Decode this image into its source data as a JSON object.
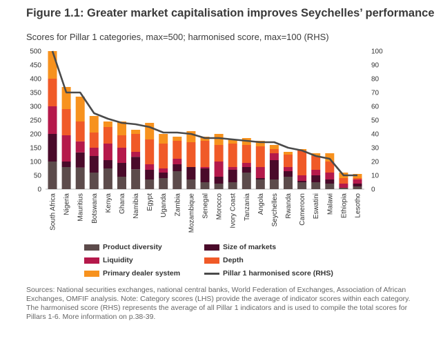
{
  "figure": {
    "title": "Figure 1.1: Greater market capitalisation improves Seychelles’ performance",
    "subtitle": "Scores for Pillar 1 categories, max=500; harmonised score, max=100 (RHS)",
    "source": "Sources: National securities exchanges, national central banks, World Federation of Exchanges, Association of African Exchanges, OMFIF analysis. Note: Category scores (LHS) provide the average of indicator scores within each category. The harmonised score (RHS) represents the average of all Pillar 1 indicators and is used to compile the total scores for Pillars 1-6. More information on p.38-39."
  },
  "chart_data": {
    "type": "bar",
    "stacked": true,
    "categories": [
      "South Africa",
      "Nigeria",
      "Mauritius",
      "Botswana",
      "Kenya",
      "Ghana",
      "Namibia",
      "Egypt",
      "Uganda",
      "Zambia",
      "Mozambique",
      "Senegal",
      "Morocco",
      "Ivory Coast",
      "Tanzania",
      "Angola",
      "Seychelles",
      "Rwanda",
      "Cameroon",
      "Eswatini",
      "Malawi",
      "Ethiopia",
      "Lesotho"
    ],
    "series": [
      {
        "name": "Product diversity",
        "color": "#5c4b4b",
        "axis": "left",
        "values": [
          100,
          80,
          78,
          60,
          75,
          45,
          72,
          35,
          40,
          65,
          35,
          25,
          20,
          25,
          60,
          35,
          35,
          45,
          25,
          25,
          20,
          5,
          10
        ]
      },
      {
        "name": "Size of markets",
        "color": "#4a0a2a",
        "axis": "left",
        "values": [
          100,
          20,
          55,
          60,
          30,
          50,
          45,
          35,
          20,
          25,
          45,
          50,
          25,
          45,
          20,
          5,
          70,
          20,
          5,
          25,
          15,
          0,
          10
        ]
      },
      {
        "name": "Liquidity",
        "color": "#b5194b",
        "axis": "left",
        "values": [
          100,
          95,
          40,
          30,
          60,
          55,
          18,
          20,
          15,
          20,
          0,
          5,
          55,
          10,
          15,
          40,
          25,
          15,
          20,
          20,
          25,
          15,
          15
        ]
      },
      {
        "name": "Depth",
        "color": "#f05a28",
        "axis": "left",
        "values": [
          100,
          95,
          72,
          55,
          60,
          45,
          65,
          90,
          90,
          65,
          90,
          95,
          60,
          85,
          65,
          75,
          15,
          45,
          90,
          50,
          40,
          20,
          5
        ]
      },
      {
        "name": "Primary dealer system",
        "color": "#f7921e",
        "axis": "left",
        "values": [
          100,
          80,
          90,
          60,
          20,
          50,
          15,
          60,
          35,
          15,
          40,
          15,
          40,
          15,
          25,
          20,
          15,
          10,
          5,
          10,
          30,
          20,
          15
        ]
      },
      {
        "name": "Pillar 1 harmonised score (RHS)",
        "color": "#4a4a4a",
        "axis": "right",
        "type": "line",
        "values": [
          100,
          70,
          70,
          55,
          51,
          48,
          47,
          45,
          41,
          41,
          40,
          37,
          37,
          36,
          35,
          34,
          34,
          30,
          28,
          24,
          22,
          10,
          10
        ]
      }
    ],
    "ylim_left": [
      0,
      500
    ],
    "yticks_left": [
      "0",
      "50",
      "100",
      "150",
      "200",
      "250",
      "300",
      "350",
      "400",
      "450",
      "500"
    ],
    "ylim_right": [
      0,
      100
    ],
    "yticks_right": [
      "0",
      "10",
      "20",
      "30",
      "40",
      "50",
      "60",
      "70",
      "80",
      "90",
      "100"
    ],
    "grid": false,
    "legend_position": "bottom"
  }
}
